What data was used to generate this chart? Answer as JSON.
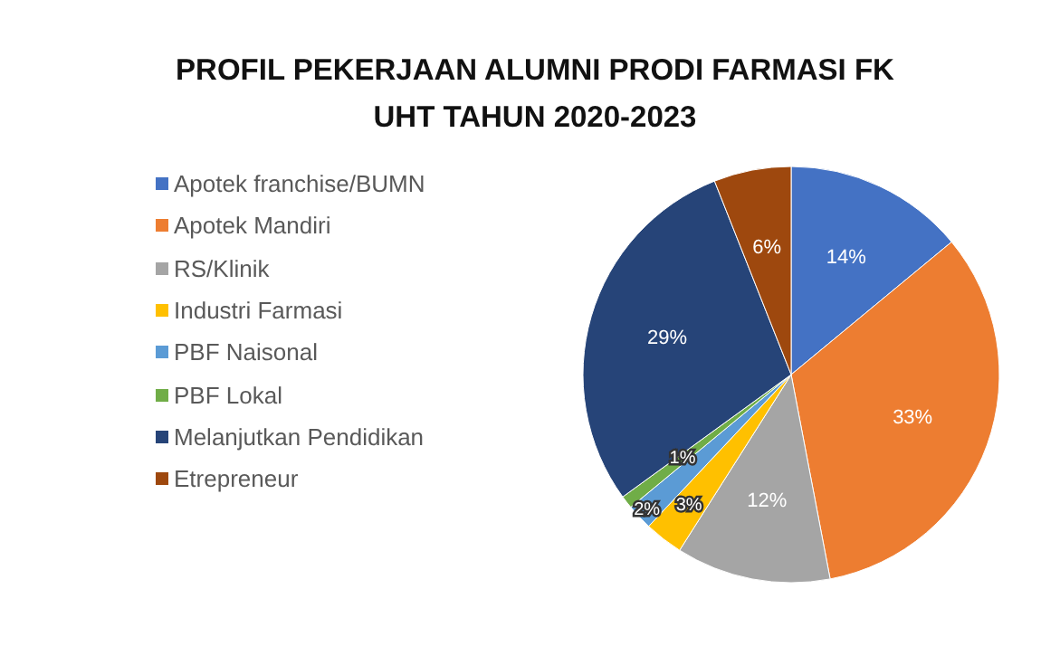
{
  "chart_data": {
    "type": "pie",
    "title": "PROFIL  PEKERJAAN ALUMNI PRODI FARMASI FK\nUHT TAHUN 2020-2023",
    "categories": [
      "Apotek franchise/BUMN",
      "Apotek Mandiri",
      "RS/Klinik",
      "Industri Farmasi",
      "PBF Naisonal",
      "PBF Lokal",
      "Melanjutkan Pendidikan",
      "Etrepreneur"
    ],
    "values": [
      14,
      33,
      12,
      3,
      2,
      1,
      29,
      6
    ],
    "colors": [
      "#4472c4",
      "#ed7d31",
      "#a5a5a5",
      "#ffc000",
      "#5b9bd5",
      "#70ad47",
      "#264478",
      "#9e480e"
    ],
    "value_labels": [
      "14%",
      "33%",
      "12%",
      "3%",
      "2%",
      "1%",
      "29%",
      "6%"
    ],
    "legend": "left"
  }
}
